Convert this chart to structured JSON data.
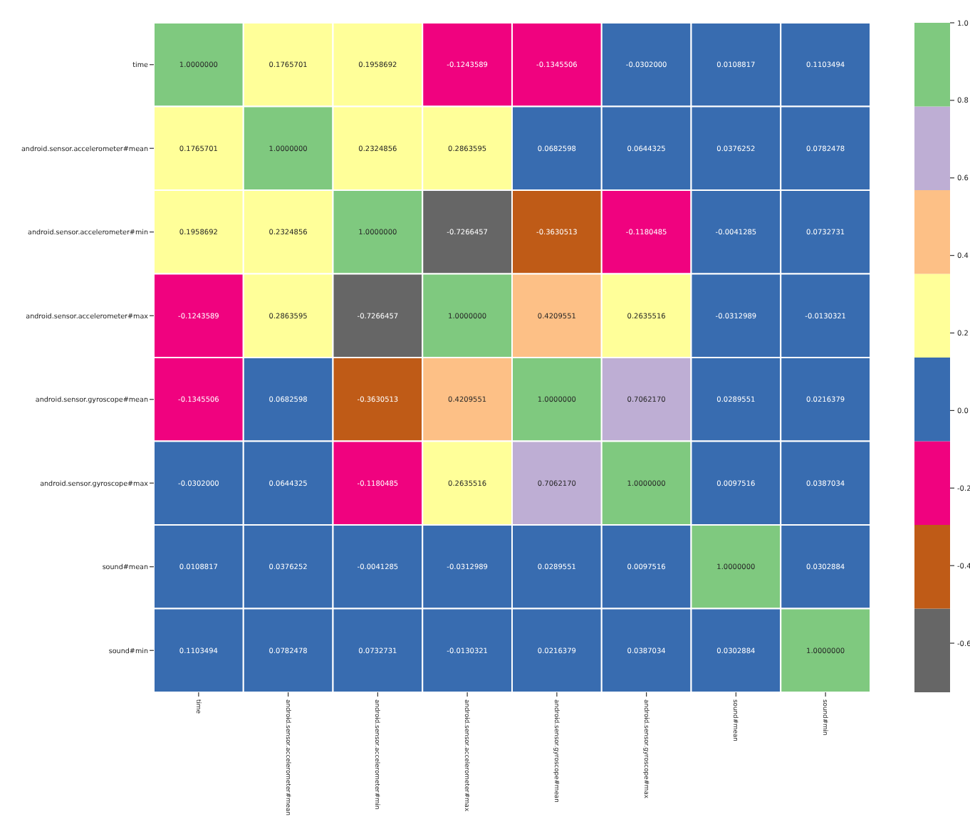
{
  "chart_data": {
    "type": "heatmap",
    "categories": [
      "time",
      "android.sensor.accelerometer#mean",
      "android.sensor.accelerometer#min",
      "android.sensor.accelerometer#max",
      "android.sensor.gyroscope#mean",
      "android.sensor.gyroscope#max",
      "sound#mean",
      "sound#min"
    ],
    "y_categories": [
      "time",
      "android.sensor.accelerometer#mean",
      "android.sensor.accelerometer#min",
      "android.sensor.accelerometer#max",
      "android.sensor.gyroscope#mean",
      "android.sensor.gyroscope#max",
      "sound#mean",
      "sound#min"
    ],
    "cells": [
      [
        1,
        0.1765701,
        0.1958692,
        -0.1243589,
        -0.1345506,
        -0.0302,
        0.0108817,
        0.1103494
      ],
      [
        0.1765701,
        1,
        0.2324856,
        0.2863595,
        0.0682598,
        0.0644325,
        0.0376252,
        0.0782478
      ],
      [
        0.1958692,
        0.2324856,
        1,
        -0.7266457,
        -0.3630513,
        -0.1180485,
        -0.0041285,
        0.0732731
      ],
      [
        -0.1243589,
        0.2863595,
        -0.7266457,
        1,
        0.4209551,
        0.2635516,
        -0.0312989,
        -0.0130321
      ],
      [
        -0.1345506,
        0.0682598,
        -0.3630513,
        0.4209551,
        1,
        0.706217,
        0.0289551,
        0.0216379
      ],
      [
        -0.0302,
        0.0644325,
        -0.1180485,
        0.2635516,
        0.706217,
        1,
        0.0097516,
        0.0387034
      ],
      [
        0.0108817,
        0.0376252,
        -0.0041285,
        -0.0312989,
        0.0289551,
        0.0097516,
        1,
        0.0302884
      ],
      [
        0.1103494,
        0.0782478,
        0.0732731,
        -0.0130321,
        0.0216379,
        0.0387034,
        0.0302884,
        1
      ]
    ],
    "cell_labels": [
      [
        "1.0000000",
        "0.1765701",
        "0.1958692",
        "-0.1243589",
        "-0.1345506",
        "-0.0302000",
        "0.0108817",
        "0.1103494"
      ],
      [
        "0.1765701",
        "1.0000000",
        "0.2324856",
        "0.2863595",
        "0.0682598",
        "0.0644325",
        "0.0376252",
        "0.0782478"
      ],
      [
        "0.1958692",
        "0.2324856",
        "1.0000000",
        "-0.7266457",
        "-0.3630513",
        "-0.1180485",
        "-0.0041285",
        "0.0732731"
      ],
      [
        "-0.1243589",
        "0.2863595",
        "-0.7266457",
        "1.0000000",
        "0.4209551",
        "0.2635516",
        "-0.0312989",
        "-0.0130321"
      ],
      [
        "-0.1345506",
        "0.0682598",
        "-0.3630513",
        "0.4209551",
        "1.0000000",
        "0.7062170",
        "0.0289551",
        "0.0216379"
      ],
      [
        "-0.0302000",
        "0.0644325",
        "-0.1180485",
        "0.2635516",
        "0.7062170",
        "1.0000000",
        "0.0097516",
        "0.0387034"
      ],
      [
        "0.0108817",
        "0.0376252",
        "-0.0041285",
        "-0.0312989",
        "0.0289551",
        "0.0097516",
        "1.0000000",
        "0.0302884"
      ],
      [
        "0.1103494",
        "0.0782478",
        "0.0732731",
        "-0.0130321",
        "0.0216379",
        "0.0387034",
        "0.0302884",
        "1.0000000"
      ]
    ],
    "colors": [
      "#666666",
      "#bf5b17",
      "#f0027f",
      "#386cb0",
      "#ffff99",
      "#fdc086",
      "#beaed4",
      "#7fc97f"
    ],
    "clim": [
      -0.7266457,
      1
    ],
    "cticks": [
      {
        "value": -0.6,
        "label": "-0.6"
      },
      {
        "value": -0.4,
        "label": "-0.4"
      },
      {
        "value": -0.2,
        "label": "-0.2"
      },
      {
        "value": 0,
        "label": "0.0"
      },
      {
        "value": 0.2,
        "label": "0.2"
      },
      {
        "value": 0.4,
        "label": "0.4"
      },
      {
        "value": 0.6,
        "label": "0.6"
      },
      {
        "value": 0.8,
        "label": "0.8"
      },
      {
        "value": 1,
        "label": "1.0"
      }
    ]
  }
}
